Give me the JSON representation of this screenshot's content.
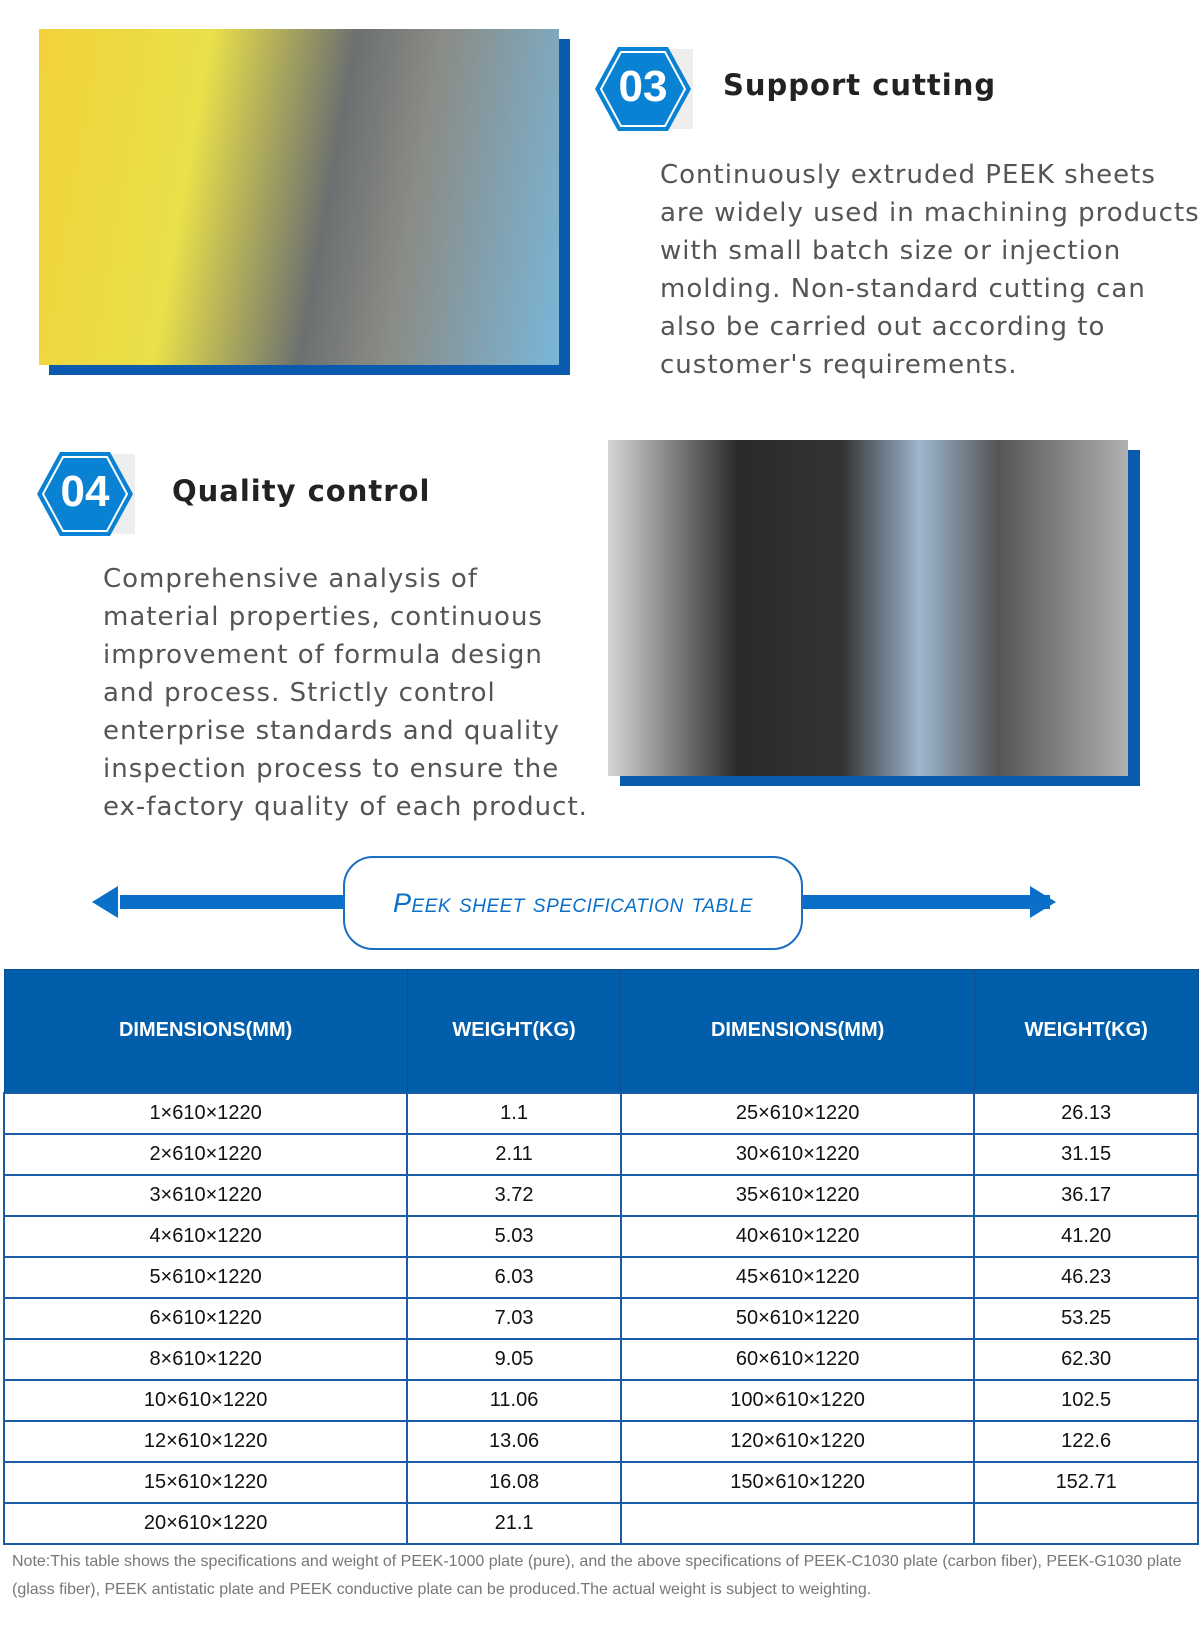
{
  "section3": {
    "number": "03",
    "title": "Support cutting",
    "text": "Continuously extruded PEEK sheets are widely used in machining products with small batch size or injection molding. Non-standard cutting can also be carried out according to customer's requirements."
  },
  "section4": {
    "number": "04",
    "title": "Quality control",
    "text": "Comprehensive analysis of material properties, continuous improvement of formula design and process. Strictly control enterprise standards and quality inspection process to ensure the ex-factory quality of each product."
  },
  "banner": {
    "title": "Peek sheet specification table"
  },
  "colors": {
    "accent": "#005eab",
    "badge": "#0a82d4"
  },
  "table": {
    "headers": [
      "DIMENSIONS(MM)",
      "WEIGHT(KG)",
      "DIMENSIONS(MM)",
      "WEIGHT(KG)"
    ],
    "rows": [
      [
        "1×610×1220",
        "1.1",
        "25×610×1220",
        "26.13"
      ],
      [
        "2×610×1220",
        "2.11",
        "30×610×1220",
        "31.15"
      ],
      [
        "3×610×1220",
        "3.72",
        "35×610×1220",
        "36.17"
      ],
      [
        "4×610×1220",
        "5.03",
        "40×610×1220",
        "41.20"
      ],
      [
        "5×610×1220",
        "6.03",
        "45×610×1220",
        "46.23"
      ],
      [
        "6×610×1220",
        "7.03",
        "50×610×1220",
        "53.25"
      ],
      [
        "8×610×1220",
        "9.05",
        "60×610×1220",
        "62.30"
      ],
      [
        "10×610×1220",
        "11.06",
        "100×610×1220",
        "102.5"
      ],
      [
        "12×610×1220",
        "13.06",
        "120×610×1220",
        "122.6"
      ],
      [
        "15×610×1220",
        "16.08",
        "150×610×1220",
        "152.71"
      ],
      [
        "20×610×1220",
        "21.1",
        "",
        ""
      ]
    ]
  },
  "note": "Note:This table shows the specifications and weight of PEEK-1000 plate (pure), and the above specifications of PEEK-C1030 plate (carbon fiber), PEEK-G1030 plate (glass fiber), PEEK antistatic plate and PEEK conductive plate can be produced.The actual weight is subject to weighting."
}
